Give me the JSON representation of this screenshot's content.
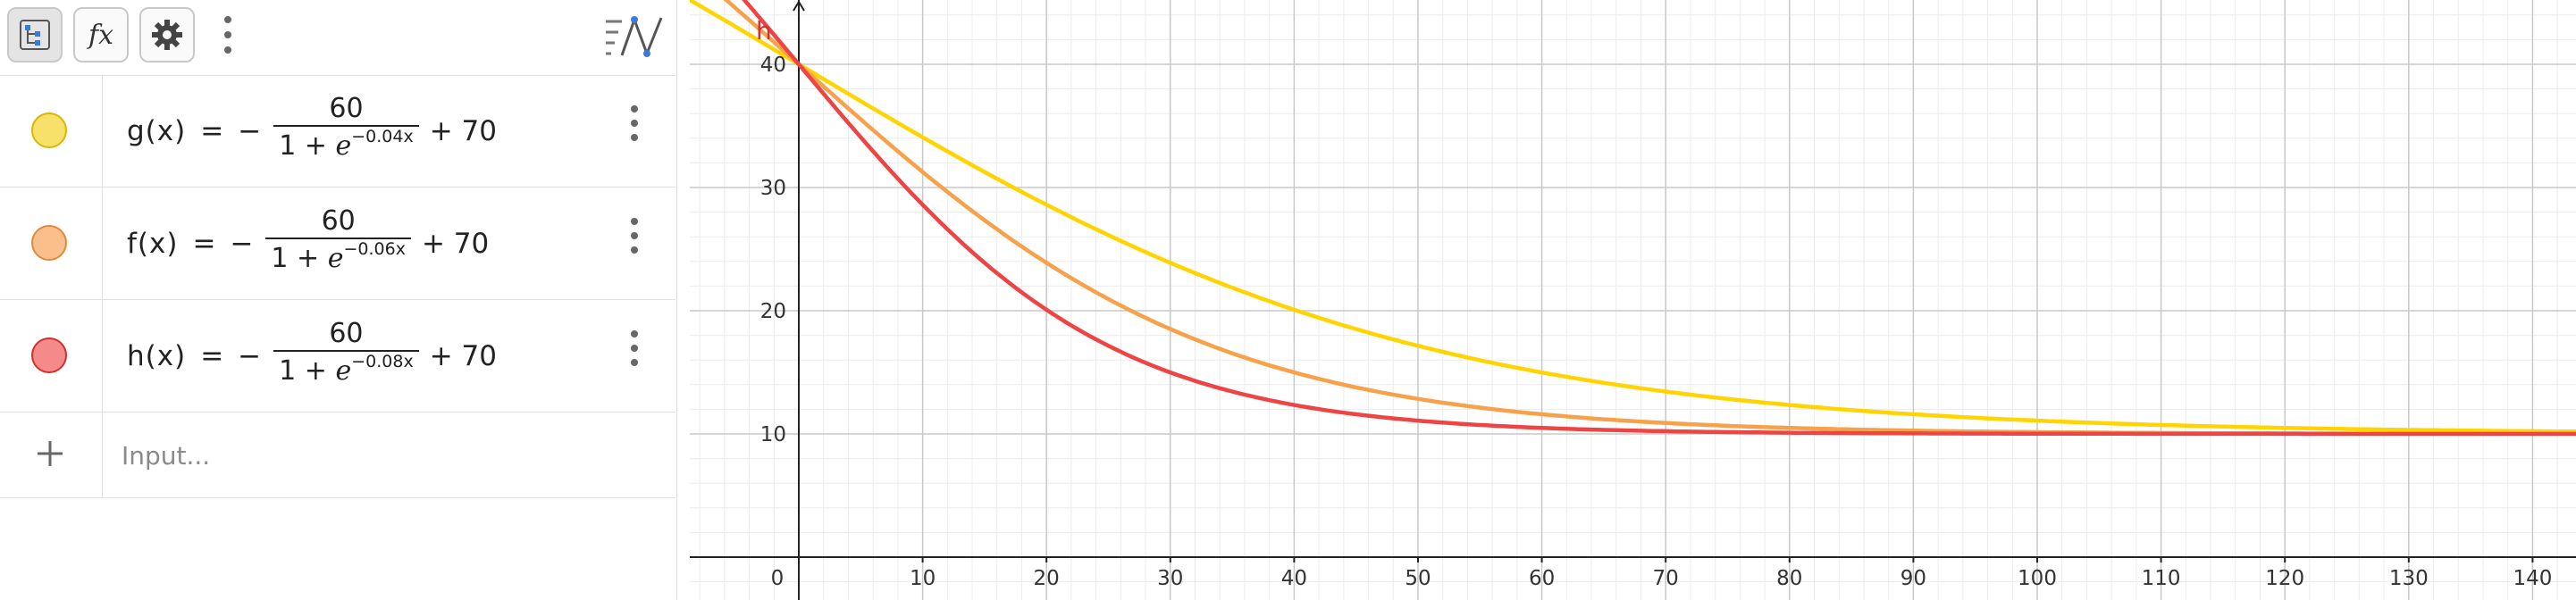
{
  "toolbar": {
    "icons": [
      "algebra-tree-icon",
      "fx-icon",
      "gear-icon",
      "more-vertical-icon",
      "graphics-view-icon"
    ],
    "fx_label": "fx"
  },
  "functions": [
    {
      "name": "g(x)",
      "eq": "=",
      "minus": "−",
      "numerator": "60",
      "denominator": "1 + ",
      "e": "e",
      "exponent": "−0.04x",
      "tail": "+ 70",
      "color": "#f7e16b",
      "stroke": "#d9b800",
      "k": 0.04,
      "curve": "#ffd400"
    },
    {
      "name": "f(x)",
      "eq": "=",
      "minus": "−",
      "numerator": "60",
      "denominator": "1 + ",
      "e": "e",
      "exponent": "−0.06x",
      "tail": "+ 70",
      "color": "#fbbf8b",
      "stroke": "#e08a3e",
      "k": 0.06,
      "curve": "#f7a24a"
    },
    {
      "name": "h(x)",
      "eq": "=",
      "minus": "−",
      "numerator": "60",
      "denominator": "1 + ",
      "e": "e",
      "exponent": "−0.08x",
      "tail": "+ 70",
      "color": "#f58a8a",
      "stroke": "#d42f2f",
      "k": 0.08,
      "curve": "#ee4444"
    }
  ],
  "input": {
    "placeholder": "Input...",
    "plus": "+"
  },
  "graph": {
    "x_ticks": [
      "0",
      "10",
      "20",
      "30",
      "40",
      "50",
      "60",
      "70",
      "80",
      "90",
      "100",
      "110",
      "120",
      "130",
      "140"
    ],
    "y_ticks": [
      "10",
      "20",
      "30",
      "40"
    ],
    "curve_label": "h",
    "grid_major": "#c8c8c8",
    "grid_minor": "#ececec"
  }
}
